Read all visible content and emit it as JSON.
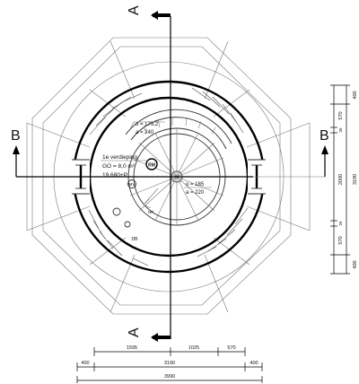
{
  "section_markers": {
    "a_top": "A",
    "a_bottom": "A",
    "b_left": "B",
    "b_right": "B"
  },
  "room_label": {
    "line1": "1e verdieping",
    "line2": "GO = 8,0 m²",
    "line3": "19.680+P"
  },
  "stair_annotations": {
    "upper_line1": "o = 179,2",
    "upper_line2": "a = 240",
    "lower_line1": "o = 185",
    "lower_line2": "a = 220"
  },
  "small_labels": {
    "wall_symbol": "RM",
    "shaft_symbol": "MV",
    "stair_direction": "OP",
    "misc": "DB"
  },
  "dimensions_bottom": {
    "row1": [
      "1595",
      "1025",
      "570"
    ],
    "row2": [
      "400",
      "3190",
      "400"
    ],
    "row3": [
      "3990"
    ]
  },
  "dimensions_right": {
    "inner": [
      "570",
      "26",
      "2000",
      "26",
      "570"
    ],
    "outer": [
      "400",
      "3190",
      "400"
    ]
  }
}
